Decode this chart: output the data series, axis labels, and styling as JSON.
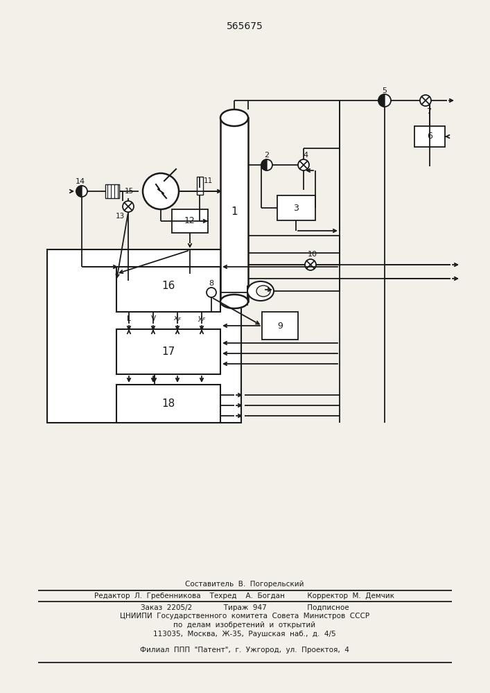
{
  "title": "565675",
  "bg_color": "#f2f0e8",
  "line_color": "#1a1a1a",
  "footer": {
    "line1": "Составитель  В.  Погорельский",
    "line2": "Редактор  Л.  Гребенникова    Техред    А.  Богдан          Корректор  М.  Демчик",
    "line3": "Заказ  2205/2              Тираж  947                  Подписное",
    "line4": "ЦНИИПИ  Государственного  комитета  Совета  Министров  СССР",
    "line5": "по  делам  изобретений  и  открытий",
    "line6": "113035,  Москва,  Ж-35,  Раушская  наб.,  д.  4/5",
    "line7": "Филиал  ППП  \"Патент\",  г.  Ужгород,  ул.  Проектоя,  4"
  }
}
